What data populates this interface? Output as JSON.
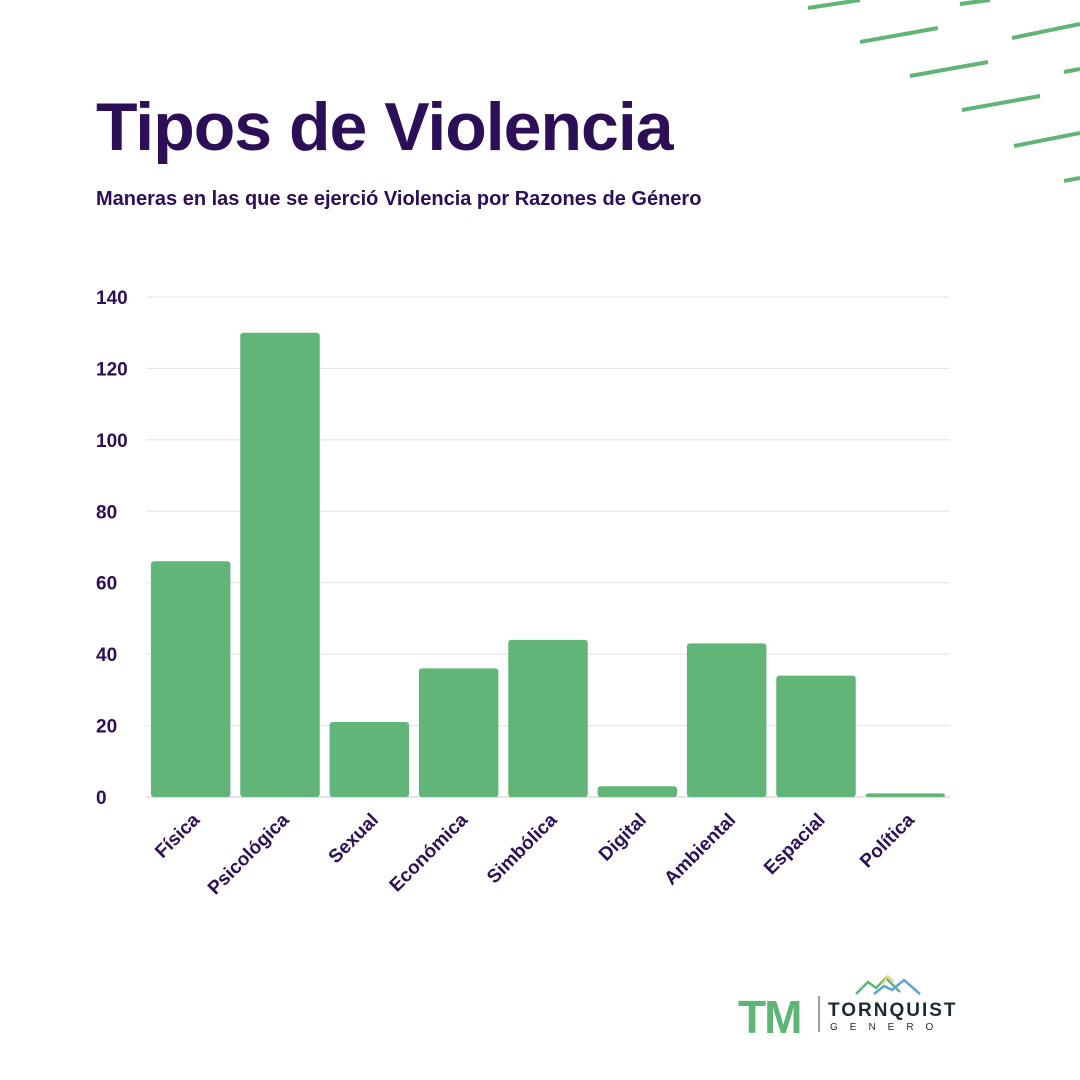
{
  "title": "Tipos de Violencia",
  "subtitle": "Maneras en las que se ejerció Violencia por Razones de Género",
  "colors": {
    "bar": "#62b579",
    "text": "#2c0f57",
    "grid": "#e2e2e2",
    "accent": "#5fb476"
  },
  "chart_data": {
    "type": "bar",
    "title": "",
    "xlabel": "",
    "ylabel": "",
    "categories": [
      "Física",
      "Psicológica",
      "Sexual",
      "Económica",
      "Simbólica",
      "Digital",
      "Ambiental",
      "Espacial",
      "Política"
    ],
    "values": [
      66,
      130,
      21,
      36,
      44,
      3,
      43,
      34,
      1
    ],
    "ylim": [
      0,
      140
    ],
    "yticks": [
      0,
      20,
      40,
      60,
      80,
      100,
      120,
      140
    ],
    "grid": true
  },
  "logo": {
    "mark": "TM",
    "name": "TORNQUIST",
    "sub": "GENERO",
    "icon": "mountains-icon"
  }
}
